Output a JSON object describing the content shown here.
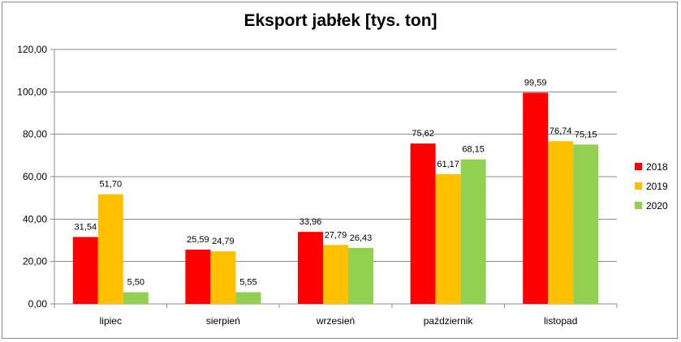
{
  "chart_data": {
    "type": "bar",
    "title": "Eksport jabłek [tys. ton]",
    "categories": [
      "lipiec",
      "sierpień",
      "wrzesień",
      "październik",
      "listopad"
    ],
    "series": [
      {
        "name": "2018",
        "color": "#ff0000",
        "values": [
          31.54,
          25.59,
          33.96,
          75.62,
          99.59
        ],
        "labels": [
          "31,54",
          "25,59",
          "33,96",
          "75,62",
          "99,59"
        ]
      },
      {
        "name": "2019",
        "color": "#ffc000",
        "values": [
          51.7,
          24.79,
          27.79,
          61.17,
          76.74
        ],
        "labels": [
          "51,70",
          "24,79",
          "27,79",
          "61,17",
          "76,74"
        ]
      },
      {
        "name": "2020",
        "color": "#92d050",
        "values": [
          5.5,
          5.55,
          26.43,
          68.15,
          75.15
        ],
        "labels": [
          "5,50",
          "5,55",
          "26,43",
          "68,15",
          "75,15"
        ]
      }
    ],
    "ylim": [
      0,
      120
    ],
    "yticks": [
      "0,00",
      "20,00",
      "40,00",
      "60,00",
      "80,00",
      "100,00",
      "120,00"
    ],
    "grid": true,
    "legend": "right"
  }
}
